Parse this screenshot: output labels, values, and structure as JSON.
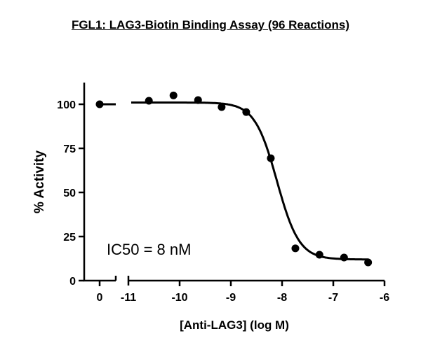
{
  "chart_data": {
    "type": "line",
    "title": "FGL1: LAG3-Biotin Binding Assay (96 Reactions)",
    "xlabel": "[Anti-LAG3] (log M)",
    "ylabel": "% Activity",
    "annotation": "IC50 = 8 nM",
    "ylim": [
      0,
      112
    ],
    "yticks": [
      0,
      25,
      50,
      75,
      100
    ],
    "ytick_labels": [
      "0",
      "25",
      "50",
      "75",
      "100"
    ],
    "x_break": true,
    "xticks": [
      0,
      -11,
      -10,
      -9,
      -8,
      -7,
      -6
    ],
    "xtick_labels": [
      "0",
      "-11",
      "-10",
      "-9",
      "-8",
      "-7",
      "-6"
    ],
    "grid": false,
    "series": [
      {
        "name": "data points",
        "style": "scatter",
        "x": [
          0,
          -10.6,
          -10.12,
          -9.64,
          -9.18,
          -8.7,
          -8.22,
          -7.74,
          -7.27,
          -6.79,
          -6.32
        ],
        "y": [
          100,
          102,
          105,
          102.4,
          98.4,
          95.6,
          69.4,
          18.3,
          14.7,
          13.1,
          10.3
        ]
      },
      {
        "name": "fitted curve",
        "style": "line",
        "model": "sigmoidal dose-response",
        "top": 101,
        "bottom": 12,
        "log_ic50": -8.1,
        "hill_slope": -2.0
      }
    ]
  }
}
